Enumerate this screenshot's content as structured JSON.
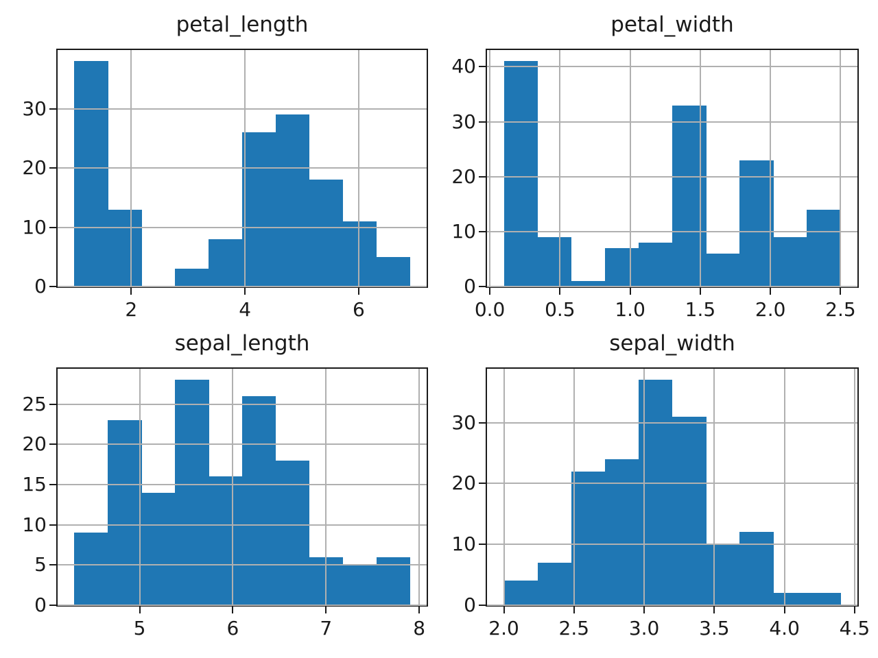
{
  "figure": {
    "background": "#ffffff",
    "bar_color": "#1f77b4",
    "grid_color": "#b0b0b0",
    "spine_color": "#1a1a1a",
    "text_color": "#1a1a1a"
  },
  "chart_data": [
    {
      "type": "bar",
      "subtype": "histogram",
      "title": "petal_length",
      "bin_start": 1.0,
      "bin_width": 0.59,
      "counts": [
        38,
        13,
        0,
        3,
        8,
        26,
        29,
        18,
        11,
        5
      ],
      "xlim": [
        0.705,
        7.195
      ],
      "ylim": [
        0,
        39.9
      ],
      "xticks": [
        {
          "value": 2,
          "label": "2"
        },
        {
          "value": 4,
          "label": "4"
        },
        {
          "value": 6,
          "label": "6"
        }
      ],
      "yticks": [
        {
          "value": 0,
          "label": "0"
        },
        {
          "value": 10,
          "label": "10"
        },
        {
          "value": 20,
          "label": "20"
        },
        {
          "value": 30,
          "label": "30"
        }
      ],
      "grid": true,
      "legend": false
    },
    {
      "type": "bar",
      "subtype": "histogram",
      "title": "petal_width",
      "bin_start": 0.1,
      "bin_width": 0.24,
      "counts": [
        41,
        9,
        1,
        7,
        8,
        33,
        6,
        23,
        9,
        14
      ],
      "xlim": [
        -0.02,
        2.62
      ],
      "ylim": [
        0,
        43.05
      ],
      "xticks": [
        {
          "value": 0.0,
          "label": "0.0"
        },
        {
          "value": 0.5,
          "label": "0.5"
        },
        {
          "value": 1.0,
          "label": "1.0"
        },
        {
          "value": 1.5,
          "label": "1.5"
        },
        {
          "value": 2.0,
          "label": "2.0"
        },
        {
          "value": 2.5,
          "label": "2.5"
        }
      ],
      "yticks": [
        {
          "value": 0,
          "label": "0"
        },
        {
          "value": 10,
          "label": "10"
        },
        {
          "value": 20,
          "label": "20"
        },
        {
          "value": 30,
          "label": "30"
        },
        {
          "value": 40,
          "label": "40"
        }
      ],
      "grid": true,
      "legend": false
    },
    {
      "type": "bar",
      "subtype": "histogram",
      "title": "sepal_length",
      "bin_start": 4.3,
      "bin_width": 0.36,
      "counts": [
        9,
        23,
        14,
        28,
        16,
        26,
        18,
        6,
        5,
        6
      ],
      "xlim": [
        4.12,
        8.08
      ],
      "ylim": [
        0,
        29.4
      ],
      "xticks": [
        {
          "value": 5,
          "label": "5"
        },
        {
          "value": 6,
          "label": "6"
        },
        {
          "value": 7,
          "label": "7"
        },
        {
          "value": 8,
          "label": "8"
        }
      ],
      "yticks": [
        {
          "value": 0,
          "label": "0"
        },
        {
          "value": 5,
          "label": "5"
        },
        {
          "value": 10,
          "label": "10"
        },
        {
          "value": 15,
          "label": "15"
        },
        {
          "value": 20,
          "label": "20"
        },
        {
          "value": 25,
          "label": "25"
        }
      ],
      "grid": true,
      "legend": false
    },
    {
      "type": "bar",
      "subtype": "histogram",
      "title": "sepal_width",
      "bin_start": 2.0,
      "bin_width": 0.24,
      "counts": [
        4,
        7,
        22,
        24,
        37,
        31,
        10,
        12,
        2,
        2
      ],
      "xlim": [
        1.88,
        4.52
      ],
      "ylim": [
        0,
        38.85
      ],
      "xticks": [
        {
          "value": 2.0,
          "label": "2.0"
        },
        {
          "value": 2.5,
          "label": "2.5"
        },
        {
          "value": 3.0,
          "label": "3.0"
        },
        {
          "value": 3.5,
          "label": "3.5"
        },
        {
          "value": 4.0,
          "label": "4.0"
        },
        {
          "value": 4.5,
          "label": "4.5"
        }
      ],
      "yticks": [
        {
          "value": 0,
          "label": "0"
        },
        {
          "value": 10,
          "label": "10"
        },
        {
          "value": 20,
          "label": "20"
        },
        {
          "value": 30,
          "label": "30"
        }
      ],
      "grid": true,
      "legend": false
    }
  ]
}
